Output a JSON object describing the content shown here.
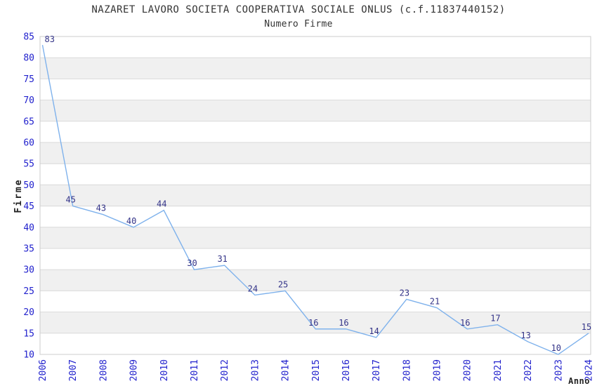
{
  "chart_data": {
    "type": "line",
    "title": "NAZARET LAVORO SOCIETA COOPERATIVA SOCIALE ONLUS (c.f.11837440152)",
    "subtitle": "Numero Firme",
    "xlabel": "Anno",
    "ylabel": "Firme",
    "x": [
      "2006",
      "2007",
      "2008",
      "2009",
      "2010",
      "2011",
      "2012",
      "2013",
      "2014",
      "2015",
      "2016",
      "2017",
      "2018",
      "2019",
      "2020",
      "2021",
      "2022",
      "2023",
      "2024"
    ],
    "series": [
      {
        "name": "Numero Firme",
        "values": [
          83,
          45,
          43,
          40,
          44,
          30,
          31,
          24,
          25,
          16,
          16,
          14,
          23,
          21,
          16,
          17,
          13,
          10,
          15
        ]
      }
    ],
    "ylim": [
      10,
      85
    ],
    "ytick_step": 5,
    "grid": "horizontal-bands",
    "legend": "none",
    "point_labels_visible": true,
    "colors": {
      "line": "#7fb2ec",
      "tick_label": "#2121cd",
      "point_label": "#333388",
      "band": "#f0f0f0",
      "gridline": "#d9d9d9",
      "plot_border": "#cccccc",
      "title_text": "#333333",
      "axis_title_text": "#222222",
      "background": "#ffffff"
    }
  }
}
